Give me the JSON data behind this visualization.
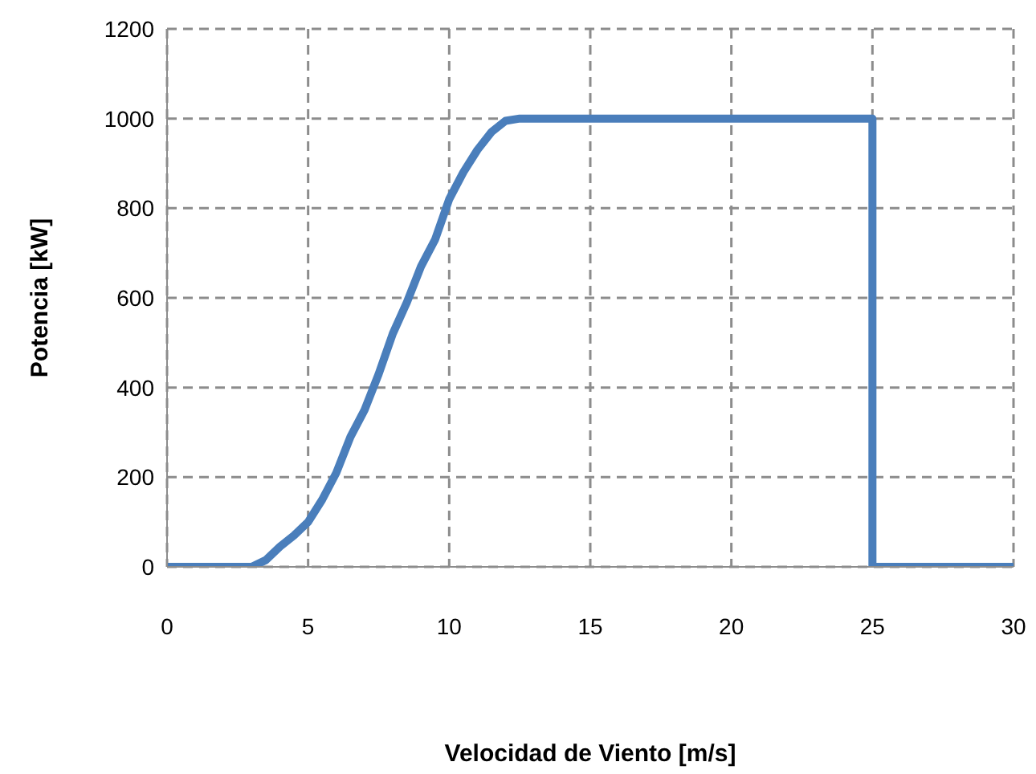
{
  "chart_data": {
    "type": "line",
    "xlabel": "Velocidad de Viento [m/s]",
    "ylabel": "Potencia [kW]",
    "x": [
      0,
      3,
      3.5,
      4,
      4.5,
      5,
      5.5,
      6,
      6.5,
      7,
      7.5,
      8,
      8.5,
      9,
      9.5,
      10,
      10.5,
      11,
      11.5,
      12,
      12.5,
      13,
      25,
      25,
      30
    ],
    "series": [
      {
        "color": "#4a7ebb",
        "values": [
          0,
          0,
          15,
          45,
          70,
          100,
          150,
          210,
          290,
          350,
          430,
          520,
          590,
          670,
          730,
          820,
          880,
          930,
          970,
          995,
          1000,
          1000,
          1000,
          0,
          0
        ]
      }
    ],
    "xlim": [
      0,
      30
    ],
    "xticks": [
      0,
      5,
      10,
      15,
      20,
      25,
      30
    ],
    "ylim": [
      0,
      1200
    ],
    "yticks": [
      0,
      200,
      400,
      600,
      800,
      1000,
      1200
    ],
    "grid": true,
    "legend": false,
    "marker": "none",
    "line_style": "solid"
  }
}
